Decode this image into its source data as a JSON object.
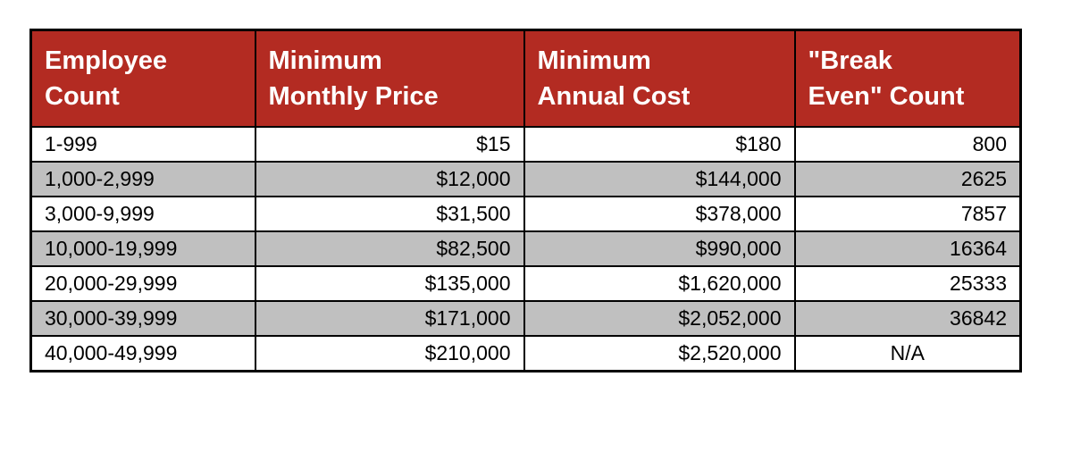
{
  "colors": {
    "header_bg": "#B32B22",
    "header_text": "#FFFFFF",
    "row_bg": "#FFFFFF",
    "row_alt_bg": "#C0C0C0",
    "border": "#000000",
    "canvas_bg": "#FFFFFF"
  },
  "headers": [
    {
      "line1": "Employee",
      "line2": "Count"
    },
    {
      "line1": "Minimum",
      "line2": "Monthly Price"
    },
    {
      "line1": "Minimum",
      "line2": "Annual Cost"
    },
    {
      "line1": "\"Break",
      "line2": "Even\" Count"
    }
  ],
  "chart_data": {
    "type": "table",
    "title": "",
    "columns": [
      "Employee Count",
      "Minimum Monthly Price",
      "Minimum Annual Cost",
      "\"Break Even\" Count"
    ],
    "rows": [
      [
        "1-999",
        "$15",
        "$180",
        "800"
      ],
      [
        "1,000-2,999",
        "$12,000",
        "$144,000",
        "2625"
      ],
      [
        "3,000-9,999",
        "$31,500",
        "$378,000",
        "7857"
      ],
      [
        "10,000-19,999",
        "$82,500",
        "$990,000",
        "16364"
      ],
      [
        "20,000-29,999",
        "$135,000",
        "$1,620,000",
        "25333"
      ],
      [
        "30,000-39,999",
        "$171,000",
        "$2,052,000",
        "36842"
      ],
      [
        "40,000-49,999",
        "$210,000",
        "$2,520,000",
        "N/A"
      ]
    ],
    "layout_hints": {
      "column_alignment": [
        "left",
        "right",
        "right",
        "right"
      ],
      "last_row_last_cell_alignment": "center",
      "alternating_row_shading": true,
      "grid": true
    }
  }
}
